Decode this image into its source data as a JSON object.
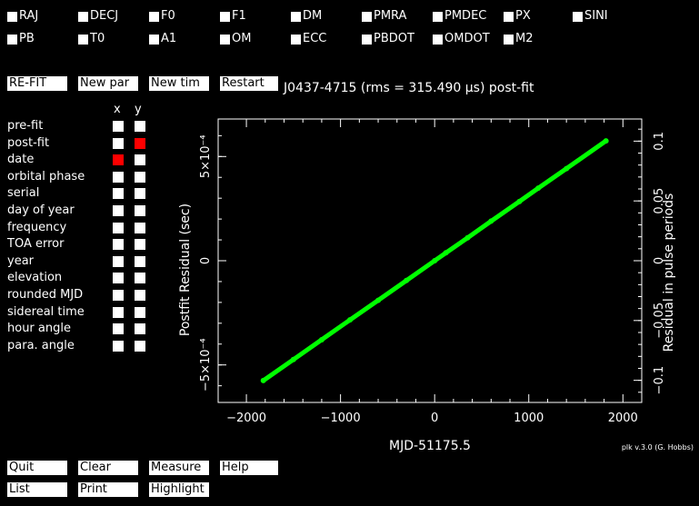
{
  "params_row1": [
    "RAJ",
    "DECJ",
    "F0",
    "F1",
    "DM",
    "PMRA",
    "PMDEC",
    "PX",
    "SINI"
  ],
  "params_row2": [
    "PB",
    "T0",
    "A1",
    "OM",
    "ECC",
    "PBDOT",
    "OMDOT",
    "M2"
  ],
  "buttons_top": {
    "refit": "RE-FIT",
    "new_par": "New par",
    "new_tim": "New tim",
    "restart": "Restart"
  },
  "title": "J0437-4715 (rms = 315.490 μs) post-fit",
  "axis_options": {
    "x_header": "x",
    "y_header": "y",
    "items": [
      {
        "label": "pre-fit",
        "x": false,
        "y": false
      },
      {
        "label": "post-fit",
        "x": false,
        "y": true
      },
      {
        "label": "date",
        "x": true,
        "y": false
      },
      {
        "label": "orbital phase",
        "x": false,
        "y": false
      },
      {
        "label": "serial",
        "x": false,
        "y": false
      },
      {
        "label": "day of year",
        "x": false,
        "y": false
      },
      {
        "label": "frequency",
        "x": false,
        "y": false
      },
      {
        "label": "TOA error",
        "x": false,
        "y": false
      },
      {
        "label": "year",
        "x": false,
        "y": false
      },
      {
        "label": "elevation",
        "x": false,
        "y": false
      },
      {
        "label": "rounded MJD",
        "x": false,
        "y": false
      },
      {
        "label": "sidereal time",
        "x": false,
        "y": false
      },
      {
        "label": "hour angle",
        "x": false,
        "y": false
      },
      {
        "label": "para. angle",
        "x": false,
        "y": false
      }
    ]
  },
  "chart_data": {
    "type": "scatter",
    "xlabel": "MJD-51175.5",
    "ylabel": "Postfit Residual (sec)",
    "y2label": "Residual in pulse periods",
    "xlim": [
      -2300,
      2200
    ],
    "ylim": [
      -0.00068,
      0.00068
    ],
    "y2lim": [
      -0.1185,
      0.1185
    ],
    "x_ticks": [
      {
        "value": -2000,
        "label": "−2000"
      },
      {
        "value": -1000,
        "label": "−1000"
      },
      {
        "value": 0,
        "label": "0"
      },
      {
        "value": 1000,
        "label": "1000"
      },
      {
        "value": 2000,
        "label": "2000"
      }
    ],
    "y_ticks": [
      {
        "value": -0.0005,
        "label": "−5×10⁻⁴"
      },
      {
        "value": 0,
        "label": "0"
      },
      {
        "value": 0.0005,
        "label": "5×10⁻⁴"
      }
    ],
    "y2_ticks": [
      {
        "value": -0.1,
        "label": "−0.1"
      },
      {
        "value": -0.05,
        "label": "−0.05"
      },
      {
        "value": 0,
        "label": "0"
      },
      {
        "value": 0.05,
        "label": "0.05"
      },
      {
        "value": 0.1,
        "label": "0.1"
      }
    ],
    "series": [
      {
        "color": "#00ff00",
        "x": [
          -1820,
          -1500,
          -1200,
          -900,
          -600,
          -300,
          0,
          120,
          350,
          600,
          900,
          1100,
          1400,
          1820
        ],
        "y": [
          -0.000575,
          -0.000474,
          -0.000379,
          -0.000284,
          -0.00019,
          -9.5e-05,
          0.0,
          3.8e-05,
          0.00011,
          0.00019,
          0.000284,
          0.000348,
          0.000442,
          0.000575
        ]
      }
    ]
  },
  "buttons_bottom": {
    "quit": "Quit",
    "clear": "Clear",
    "measure": "Measure",
    "help": "Help",
    "list": "List",
    "print": "Print",
    "highlight": "Highlight"
  },
  "footer": "plk v.3.0 (G. Hobbs)",
  "colors": {
    "point": "#00ff00",
    "selected": "#ff0000",
    "background": "#000000"
  }
}
